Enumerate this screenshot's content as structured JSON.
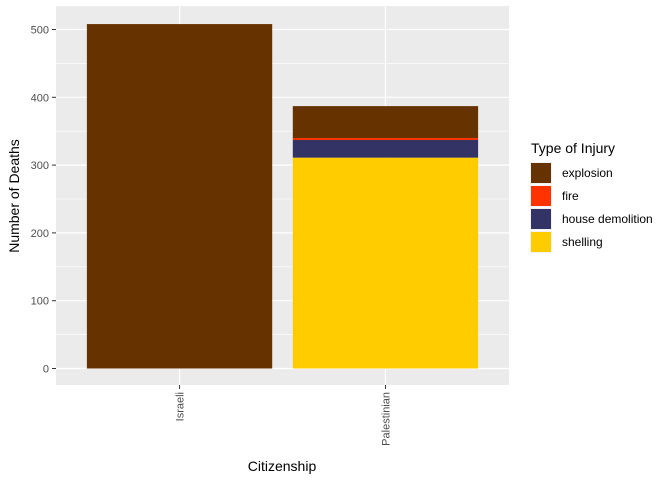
{
  "chart_data": {
    "type": "bar",
    "stacked": true,
    "categories": [
      "Israeli",
      "Palestinian"
    ],
    "series": [
      {
        "name": "shelling",
        "color": "#FFCC00",
        "values": [
          0,
          311
        ]
      },
      {
        "name": "house demolition",
        "color": "#333366",
        "values": [
          0,
          26
        ]
      },
      {
        "name": "fire",
        "color": "#FF3300",
        "values": [
          0,
          3
        ]
      },
      {
        "name": "explosion",
        "color": "#663300",
        "values": [
          508,
          47
        ]
      }
    ],
    "legend_order": [
      "explosion",
      "fire",
      "house demolition",
      "shelling"
    ],
    "legend_title": "Type of Injury",
    "legend_position": "right",
    "xlabel": "Citizenship",
    "ylabel": "Number of Deaths",
    "ylim": [
      0,
      530
    ],
    "yticks": [
      0,
      100,
      200,
      300,
      400,
      500
    ],
    "grid": true,
    "panel_background": "#EBEBEB"
  }
}
